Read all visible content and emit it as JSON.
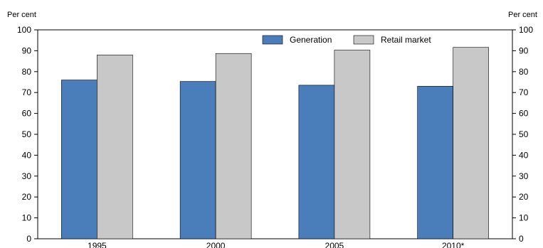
{
  "chart_data": {
    "type": "bar",
    "title": "",
    "xlabel": "",
    "ylabel": "Per cent",
    "ylabel_right": "Per cent",
    "categories": [
      "1995",
      "2000",
      "2005",
      "2010*"
    ],
    "series": [
      {
        "name": "Generation",
        "values": [
          76,
          75.3,
          73.5,
          73
        ],
        "color": "#4a7ebb"
      },
      {
        "name": "Retail market",
        "values": [
          88,
          88.7,
          90.3,
          91.6
        ],
        "color": "#c8c8c8"
      }
    ],
    "ylim": [
      0,
      100
    ],
    "yticks": [
      0,
      10,
      20,
      30,
      40,
      50,
      60,
      70,
      80,
      90,
      100
    ],
    "grid": false,
    "legend_position": "top-right"
  }
}
